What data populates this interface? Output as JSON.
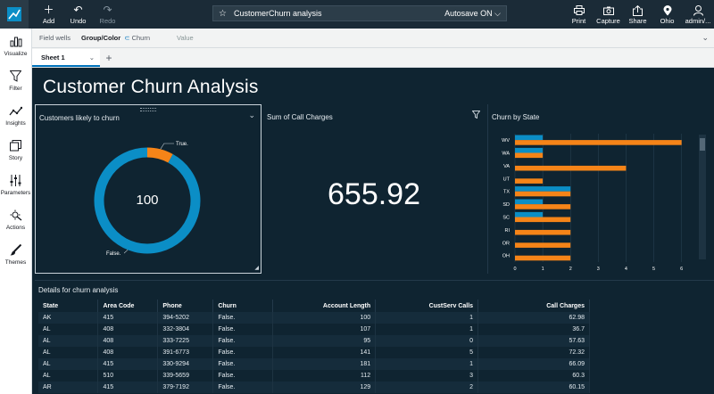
{
  "toolbar": {
    "add": "Add",
    "undo": "Undo",
    "redo": "Redo",
    "analysis_name": "CustomerChurn analysis",
    "autosave": "Autosave ON",
    "print": "Print",
    "capture": "Capture",
    "share": "Share",
    "region": "Ohio",
    "user": "admin/..."
  },
  "leftnav": {
    "items": [
      {
        "label": "Visualize",
        "icon": "bar-chart-icon"
      },
      {
        "label": "Filter",
        "icon": "funnel-icon"
      },
      {
        "label": "Insights",
        "icon": "insights-icon"
      },
      {
        "label": "Story",
        "icon": "story-icon"
      },
      {
        "label": "Parameters",
        "icon": "sliders-icon"
      },
      {
        "label": "Actions",
        "icon": "actions-icon"
      },
      {
        "label": "Themes",
        "icon": "brush-icon"
      }
    ]
  },
  "fieldwells": {
    "title": "Field wells",
    "group_label": "Group/Color",
    "group_value": "Churn",
    "value_label": "Value"
  },
  "sheets": {
    "active": "Sheet 1"
  },
  "page": {
    "title": "Customer Churn Analysis"
  },
  "colors": {
    "accent_blue": "#0b8ec6",
    "accent_orange": "#f58418",
    "background": "#0f2431"
  },
  "donut": {
    "title": "Customers likely to churn",
    "center_value": "100",
    "label_true": "True.",
    "label_false": "False."
  },
  "kpi": {
    "title": "Sum of Call Charges",
    "value": "655.92"
  },
  "barchart": {
    "title": "Churn by State"
  },
  "chart_data": [
    {
      "type": "pie",
      "title": "Customers likely to churn",
      "categories": [
        "False.",
        "True."
      ],
      "values": [
        92,
        8
      ]
    },
    {
      "type": "bar",
      "orientation": "horizontal",
      "title": "Churn by State",
      "categories": [
        "WV",
        "WA",
        "VA",
        "UT",
        "TX",
        "SD",
        "SC",
        "RI",
        "OR",
        "OH"
      ],
      "series": [
        {
          "name": "True.",
          "color": "#0b8ec6",
          "values": [
            1,
            1,
            0,
            0,
            2,
            1,
            1,
            0,
            0,
            0
          ]
        },
        {
          "name": "False.",
          "color": "#f58418",
          "values": [
            6,
            1,
            4,
            1,
            2,
            2,
            2,
            2,
            2,
            2
          ]
        }
      ],
      "xticks": [
        0,
        1,
        2,
        3,
        4,
        5,
        6
      ],
      "xlim": [
        0,
        6.3
      ],
      "grid": true
    }
  ],
  "table": {
    "title": "Details for churn analysis",
    "columns": [
      "State",
      "Area Code",
      "Phone",
      "Churn",
      "Account Length",
      "CustServ Calls",
      "Call Charges"
    ],
    "rows": [
      [
        "AK",
        "415",
        "394-5202",
        "False.",
        "100",
        "1",
        "62.98"
      ],
      [
        "AL",
        "408",
        "332-3804",
        "False.",
        "107",
        "1",
        "36.7"
      ],
      [
        "AL",
        "408",
        "333-7225",
        "False.",
        "95",
        "0",
        "57.63"
      ],
      [
        "AL",
        "408",
        "391-6773",
        "False.",
        "141",
        "5",
        "72.32"
      ],
      [
        "AL",
        "415",
        "330-9294",
        "False.",
        "181",
        "1",
        "66.09"
      ],
      [
        "AL",
        "510",
        "339-5659",
        "False.",
        "112",
        "3",
        "60.3"
      ],
      [
        "AR",
        "415",
        "379-7192",
        "False.",
        "129",
        "2",
        "60.15"
      ]
    ]
  }
}
